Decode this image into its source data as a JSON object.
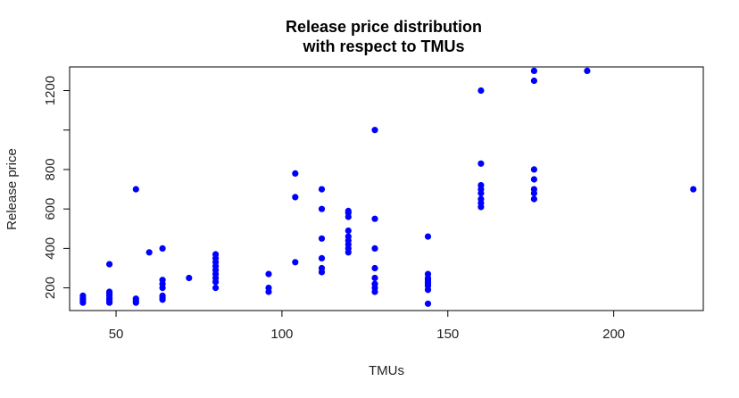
{
  "chart_data": {
    "type": "scatter",
    "title_line1": "Release price distribution",
    "title_line2": "with respect to TMUs",
    "xlabel": "TMUs",
    "ylabel": "Release price",
    "xlim": [
      36,
      227
    ],
    "ylim": [
      85,
      1320
    ],
    "x_ticks": [
      50,
      100,
      150,
      200
    ],
    "y_ticks": [
      200,
      400,
      600,
      800,
      1000,
      1200
    ],
    "y_tick_labels": [
      "200",
      "400",
      "600",
      "800",
      "",
      "1200"
    ],
    "point_color": "#0000ff",
    "grid": false,
    "points": [
      [
        40,
        125
      ],
      [
        40,
        135
      ],
      [
        40,
        145
      ],
      [
        40,
        160
      ],
      [
        48,
        125
      ],
      [
        48,
        135
      ],
      [
        48,
        145
      ],
      [
        48,
        160
      ],
      [
        48,
        170
      ],
      [
        48,
        180
      ],
      [
        48,
        320
      ],
      [
        56,
        125
      ],
      [
        56,
        135
      ],
      [
        56,
        145
      ],
      [
        56,
        700
      ],
      [
        60,
        380
      ],
      [
        64,
        140
      ],
      [
        64,
        150
      ],
      [
        64,
        160
      ],
      [
        64,
        200
      ],
      [
        64,
        220
      ],
      [
        64,
        240
      ],
      [
        64,
        400
      ],
      [
        72,
        250
      ],
      [
        80,
        200
      ],
      [
        80,
        230
      ],
      [
        80,
        250
      ],
      [
        80,
        270
      ],
      [
        80,
        290
      ],
      [
        80,
        310
      ],
      [
        80,
        330
      ],
      [
        80,
        350
      ],
      [
        80,
        370
      ],
      [
        96,
        180
      ],
      [
        96,
        200
      ],
      [
        96,
        270
      ],
      [
        104,
        330
      ],
      [
        104,
        660
      ],
      [
        104,
        780
      ],
      [
        112,
        280
      ],
      [
        112,
        300
      ],
      [
        112,
        350
      ],
      [
        112,
        450
      ],
      [
        112,
        600
      ],
      [
        112,
        700
      ],
      [
        120,
        380
      ],
      [
        120,
        400
      ],
      [
        120,
        420
      ],
      [
        120,
        440
      ],
      [
        120,
        460
      ],
      [
        120,
        490
      ],
      [
        120,
        560
      ],
      [
        120,
        580
      ],
      [
        120,
        590
      ],
      [
        128,
        180
      ],
      [
        128,
        200
      ],
      [
        128,
        220
      ],
      [
        128,
        250
      ],
      [
        128,
        300
      ],
      [
        128,
        400
      ],
      [
        128,
        550
      ],
      [
        128,
        1000
      ],
      [
        144,
        120
      ],
      [
        144,
        190
      ],
      [
        144,
        210
      ],
      [
        144,
        220
      ],
      [
        144,
        230
      ],
      [
        144,
        240
      ],
      [
        144,
        250
      ],
      [
        144,
        270
      ],
      [
        144,
        460
      ],
      [
        160,
        610
      ],
      [
        160,
        630
      ],
      [
        160,
        650
      ],
      [
        160,
        680
      ],
      [
        160,
        700
      ],
      [
        160,
        720
      ],
      [
        160,
        830
      ],
      [
        160,
        1200
      ],
      [
        176,
        650
      ],
      [
        176,
        680
      ],
      [
        176,
        700
      ],
      [
        176,
        750
      ],
      [
        176,
        800
      ],
      [
        176,
        1250
      ],
      [
        176,
        1300
      ],
      [
        192,
        1300
      ],
      [
        224,
        700
      ]
    ]
  }
}
